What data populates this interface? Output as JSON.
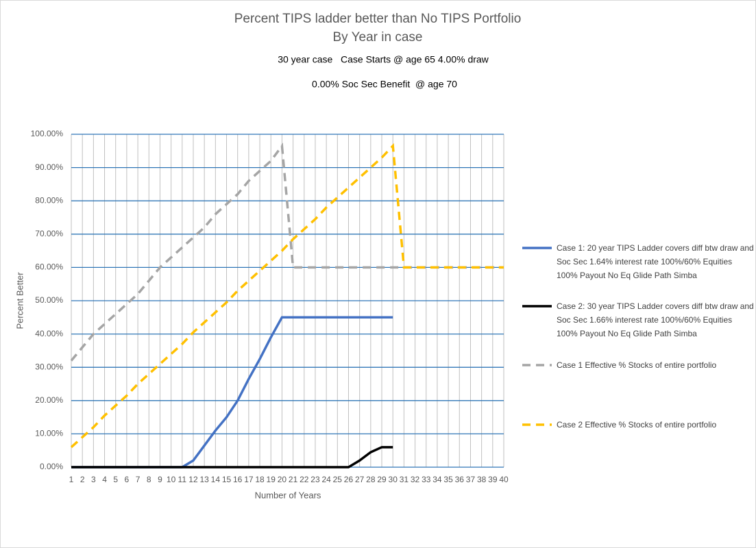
{
  "chart_data": {
    "type": "line",
    "title": "Percent TIPS ladder better than No TIPS Portfolio",
    "subtitle": "By Year in case",
    "annotations": [
      "30 year case   Case Starts @ age 65 4.00% draw",
      "0.00% Soc Sec Benefit  @ age 70"
    ],
    "xlabel": "Number of Years",
    "ylabel": "Percent Better",
    "categories": [
      1,
      2,
      3,
      4,
      5,
      6,
      7,
      8,
      9,
      10,
      11,
      12,
      13,
      14,
      15,
      16,
      17,
      18,
      19,
      20,
      21,
      22,
      23,
      24,
      25,
      26,
      27,
      28,
      29,
      30,
      31,
      32,
      33,
      34,
      35,
      36,
      37,
      38,
      39,
      40
    ],
    "ylim": [
      0,
      100
    ],
    "yticks": [
      {
        "value": 0,
        "label": "0.00%"
      },
      {
        "value": 10,
        "label": "10.00%"
      },
      {
        "value": 20,
        "label": "20.00%"
      },
      {
        "value": 30,
        "label": "30.00%"
      },
      {
        "value": 40,
        "label": "40.00%"
      },
      {
        "value": 50,
        "label": "50.00%"
      },
      {
        "value": 60,
        "label": "60.00%"
      },
      {
        "value": 70,
        "label": "70.00%"
      },
      {
        "value": 80,
        "label": "80.00%"
      },
      {
        "value": 90,
        "label": "90.00%"
      },
      {
        "value": 100,
        "label": "100.00%"
      }
    ],
    "grid": true,
    "legend": "right",
    "series": [
      {
        "name": "Case 1: 20 year TIPS Ladder covers diff btw draw and Soc Sec 1.64% interest rate 100%/60% Equities 100% Payout No Eq Glide Path Simba",
        "color": "#4472c4",
        "dashed": false,
        "values": [
          0,
          0,
          0,
          0,
          0,
          0,
          0,
          0,
          0,
          0,
          0,
          2,
          6.5,
          11,
          15,
          20,
          26.5,
          32.5,
          39,
          45,
          45,
          45,
          45,
          45,
          45,
          45,
          45,
          45,
          45,
          45,
          null,
          null,
          null,
          null,
          null,
          null,
          null,
          null,
          null,
          null
        ]
      },
      {
        "name": "Case 2: 30 year TIPS Ladder covers diff btw draw and Soc Sec 1.66% interest rate 100%/60% Equities 100% Payout No Eq Glide Path Simba",
        "color": "#000000",
        "dashed": false,
        "values": [
          0,
          0,
          0,
          0,
          0,
          0,
          0,
          0,
          0,
          0,
          0,
          0,
          0,
          0,
          0,
          0,
          0,
          0,
          0,
          0,
          0,
          0,
          0,
          0,
          0,
          0,
          2,
          4.5,
          6,
          6,
          null,
          null,
          null,
          null,
          null,
          null,
          null,
          null,
          null,
          null
        ]
      },
      {
        "name": "Case 1 Effective % Stocks of entire portfolio",
        "color": "#a5a5a5",
        "dashed": true,
        "values": [
          32,
          36,
          40,
          43,
          46,
          49,
          52,
          56,
          60,
          63,
          66,
          69,
          72,
          76,
          79,
          82,
          86,
          89,
          92,
          96.5,
          60,
          60,
          60,
          60,
          60,
          60,
          60,
          60,
          60,
          60,
          60,
          60,
          60,
          60,
          60,
          60,
          60,
          60,
          60,
          60
        ]
      },
      {
        "name": "Case 2 Effective % Stocks of entire portfolio",
        "color": "#ffc000",
        "dashed": true,
        "values": [
          6,
          9,
          12,
          15.5,
          18.5,
          21.5,
          25,
          28,
          31,
          34,
          37,
          40.5,
          43.5,
          46.5,
          49.5,
          53,
          56,
          59,
          62,
          65,
          68.5,
          71.5,
          74.5,
          78,
          81,
          84,
          87,
          90,
          93,
          96.5,
          60,
          60,
          60,
          60,
          60,
          60,
          60,
          60,
          60,
          60
        ]
      }
    ]
  }
}
